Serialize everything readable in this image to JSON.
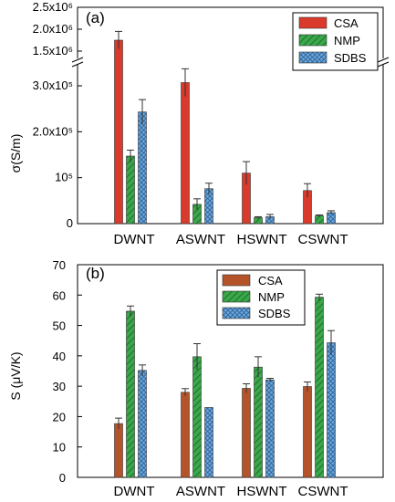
{
  "colors": {
    "a_csa": "#d93a2b",
    "a_nmp": "#3aa84a",
    "a_sdbs": "#6aa8e0",
    "b_csa": "#b5542a",
    "b_nmp": "#3aa84a",
    "b_sdbs": "#6aa8e0"
  },
  "chart_data": [
    {
      "type": "bar",
      "panel_label": "(a)",
      "ylabel": "σ(S/m)",
      "categories": [
        "DWNT",
        "ASWNT",
        "HSWNT",
        "CSWNT"
      ],
      "series": [
        {
          "name": "CSA",
          "values": [
            1750000,
            307000,
            110000,
            72000
          ],
          "errors": [
            200000,
            30000,
            25000,
            15000
          ]
        },
        {
          "name": "NMP",
          "values": [
            147000,
            42000,
            13000,
            17000
          ],
          "errors": [
            13000,
            12000,
            2000,
            2000
          ]
        },
        {
          "name": "SDBS",
          "values": [
            243000,
            76000,
            15000,
            24000
          ],
          "errors": [
            27000,
            12000,
            5000,
            4000
          ]
        }
      ],
      "y_axis_break": true,
      "ylim_lower": [
        0,
        350000
      ],
      "ylim_upper": [
        1400000,
        2500000
      ],
      "yticks_lower": [
        "0",
        "10⁵",
        "2.0x10⁵",
        "3.0x10⁵"
      ],
      "yticks_upper": [
        "1.5x10⁶",
        "2.0x10⁶",
        "2.5x10⁶"
      ],
      "legend_position": "top-right"
    },
    {
      "type": "bar",
      "panel_label": "(b)",
      "ylabel": "S (μV/K)",
      "categories": [
        "DWNT",
        "ASWNT",
        "HSWNT",
        "CSWNT"
      ],
      "series": [
        {
          "name": "CSA",
          "values": [
            17.7,
            28.0,
            29.3,
            29.9
          ],
          "errors": [
            1.8,
            1.2,
            1.5,
            1.5
          ]
        },
        {
          "name": "NMP",
          "values": [
            54.7,
            39.7,
            36.3,
            59.3
          ],
          "errors": [
            1.7,
            4.3,
            3.4,
            1.0
          ]
        },
        {
          "name": "SDBS",
          "values": [
            35.2,
            23.0,
            32.1,
            44.3
          ],
          "errors": [
            1.8,
            0,
            0.5,
            4.0
          ]
        }
      ],
      "ylim": [
        0,
        70
      ],
      "yticks": [
        "0",
        "10",
        "20",
        "30",
        "40",
        "50",
        "60",
        "70"
      ],
      "legend_position": "top-right"
    }
  ]
}
